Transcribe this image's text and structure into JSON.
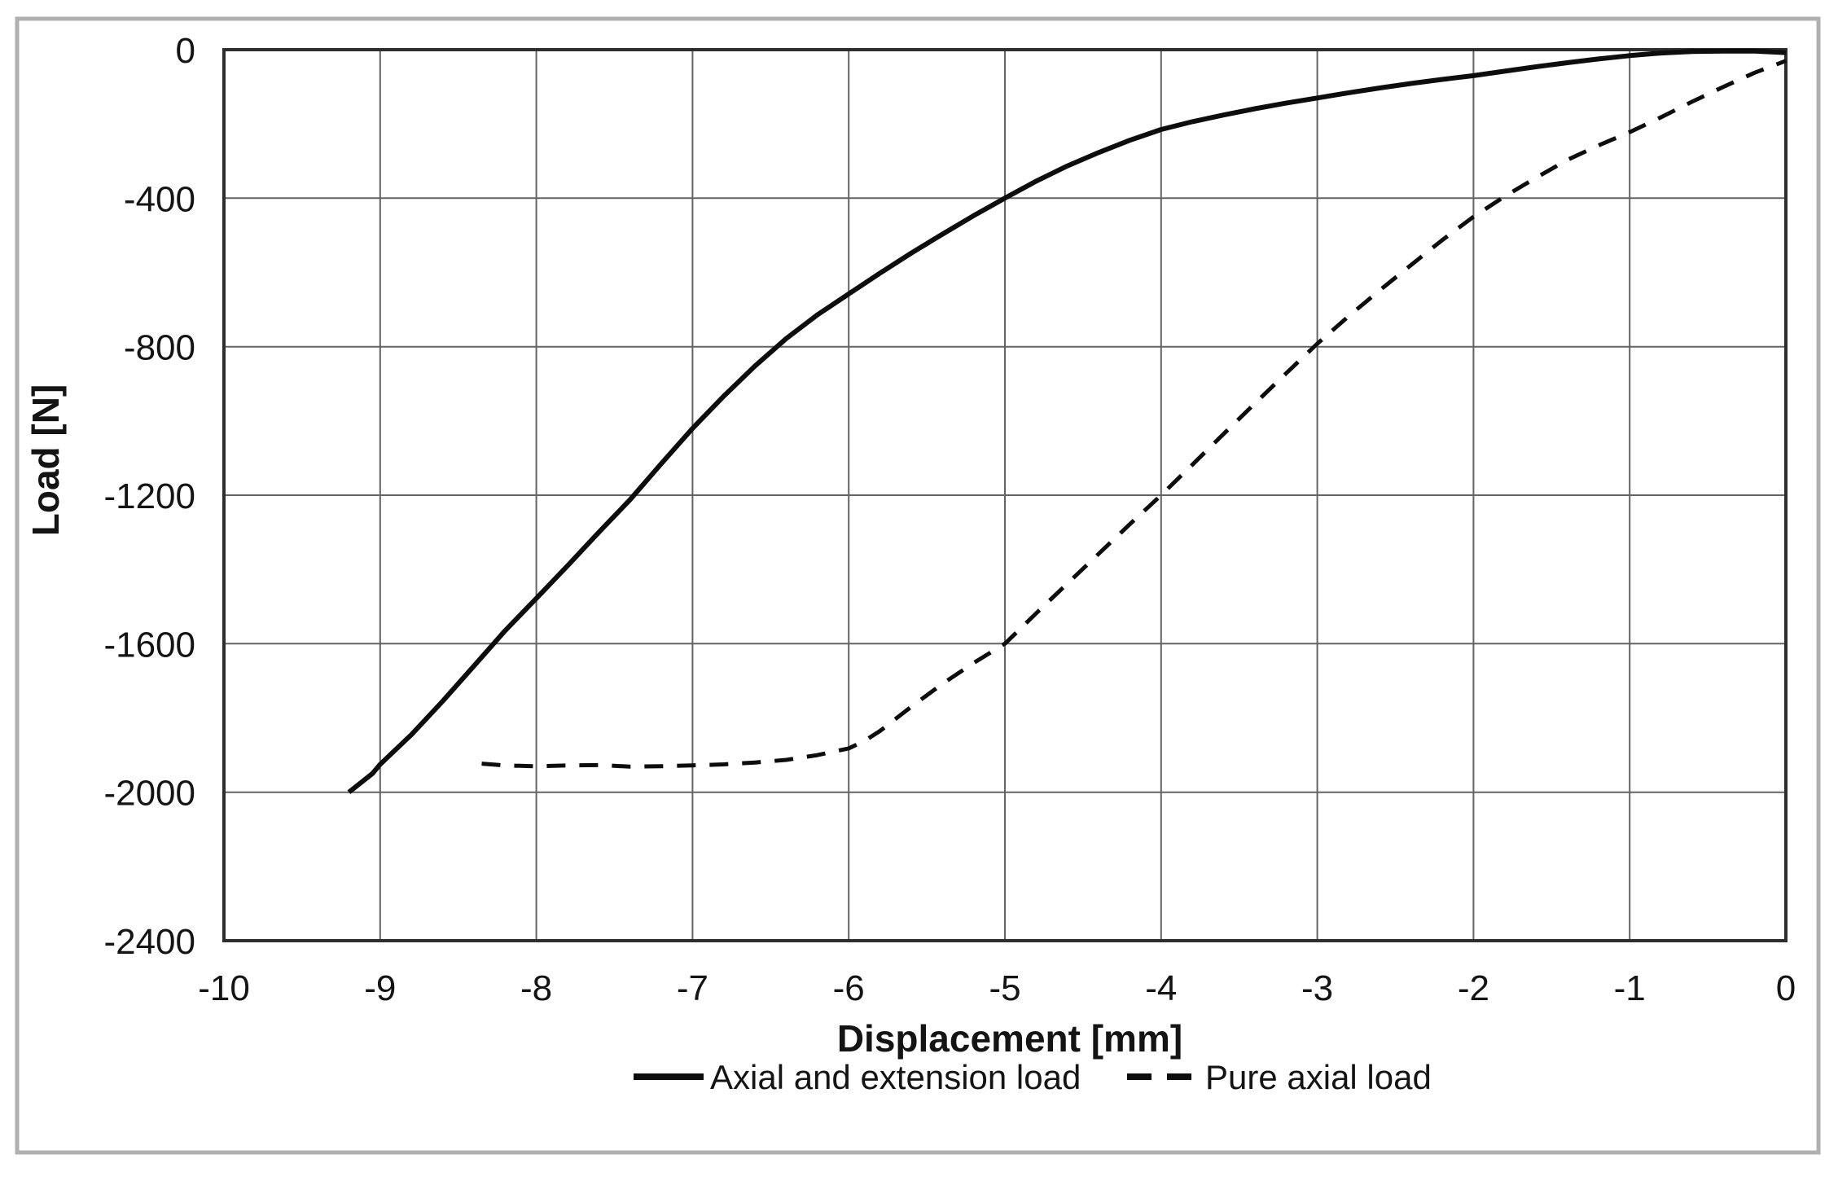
{
  "figure": {
    "background": "#ffffff",
    "frame_color": "#b0b0b0",
    "plot_border_color": "#2e2e2e",
    "gridline_color": "#636363",
    "series_color": "#0d0d0d",
    "text_color": "#141414"
  },
  "chart_data": {
    "type": "line",
    "title": "",
    "xlabel": "Displacement [mm]",
    "ylabel": "Load [N]",
    "xlim": [
      -10,
      0
    ],
    "ylim": [
      -2400,
      0
    ],
    "x_ticks": [
      -10,
      -9,
      -8,
      -7,
      -6,
      -5,
      -4,
      -3,
      -2,
      -1,
      0
    ],
    "y_ticks": [
      0,
      -400,
      -800,
      -1200,
      -1600,
      -2000,
      -2400
    ],
    "grid": true,
    "legend_position": "bottom",
    "series": [
      {
        "name": "Axial and extension load",
        "style": "solid",
        "points": [
          [
            -9.2,
            -2000
          ],
          [
            -9.05,
            -1950
          ],
          [
            -9,
            -1925
          ],
          [
            -8.8,
            -1845
          ],
          [
            -8.6,
            -1755
          ],
          [
            -8.4,
            -1660
          ],
          [
            -8.2,
            -1565
          ],
          [
            -8,
            -1478
          ],
          [
            -7.8,
            -1390
          ],
          [
            -7.6,
            -1300
          ],
          [
            -7.4,
            -1212
          ],
          [
            -7.2,
            -1115
          ],
          [
            -7,
            -1020
          ],
          [
            -6.8,
            -933
          ],
          [
            -6.6,
            -852
          ],
          [
            -6.4,
            -778
          ],
          [
            -6.2,
            -714
          ],
          [
            -6,
            -658
          ],
          [
            -5.8,
            -602
          ],
          [
            -5.6,
            -548
          ],
          [
            -5.4,
            -497
          ],
          [
            -5.2,
            -447
          ],
          [
            -5,
            -400
          ],
          [
            -4.8,
            -354
          ],
          [
            -4.6,
            -313
          ],
          [
            -4.4,
            -277
          ],
          [
            -4.2,
            -244
          ],
          [
            -4,
            -215
          ],
          [
            -3.8,
            -194
          ],
          [
            -3.6,
            -176
          ],
          [
            -3.4,
            -159
          ],
          [
            -3.2,
            -144
          ],
          [
            -3,
            -130
          ],
          [
            -2.8,
            -116
          ],
          [
            -2.6,
            -103
          ],
          [
            -2.4,
            -91
          ],
          [
            -2.2,
            -80
          ],
          [
            -2,
            -70
          ],
          [
            -1.8,
            -58
          ],
          [
            -1.6,
            -46
          ],
          [
            -1.4,
            -35
          ],
          [
            -1.2,
            -25
          ],
          [
            -1,
            -16
          ],
          [
            -0.8,
            -9
          ],
          [
            -0.6,
            -5
          ],
          [
            -0.4,
            -4
          ],
          [
            -0.2,
            -4
          ],
          [
            0,
            -8
          ]
        ]
      },
      {
        "name": "Pure axial load",
        "style": "dashed",
        "points": [
          [
            -8.35,
            -1923
          ],
          [
            -8.2,
            -1928
          ],
          [
            -8,
            -1930
          ],
          [
            -7.8,
            -1928
          ],
          [
            -7.6,
            -1927
          ],
          [
            -7.4,
            -1931
          ],
          [
            -7.2,
            -1930
          ],
          [
            -7,
            -1928
          ],
          [
            -6.8,
            -1925
          ],
          [
            -6.6,
            -1920
          ],
          [
            -6.4,
            -1913
          ],
          [
            -6.2,
            -1900
          ],
          [
            -6,
            -1882
          ],
          [
            -5.9,
            -1862
          ],
          [
            -5.8,
            -1835
          ],
          [
            -5.6,
            -1770
          ],
          [
            -5.4,
            -1708
          ],
          [
            -5.2,
            -1652
          ],
          [
            -5,
            -1600
          ],
          [
            -4.8,
            -1518
          ],
          [
            -4.6,
            -1438
          ],
          [
            -4.4,
            -1358
          ],
          [
            -4.2,
            -1278
          ],
          [
            -4,
            -1200
          ],
          [
            -3.8,
            -1118
          ],
          [
            -3.6,
            -1035
          ],
          [
            -3.4,
            -953
          ],
          [
            -3.2,
            -872
          ],
          [
            -3,
            -792
          ],
          [
            -2.8,
            -718
          ],
          [
            -2.6,
            -648
          ],
          [
            -2.4,
            -580
          ],
          [
            -2.2,
            -513
          ],
          [
            -2,
            -450
          ],
          [
            -1.8,
            -395
          ],
          [
            -1.6,
            -345
          ],
          [
            -1.4,
            -297
          ],
          [
            -1.2,
            -258
          ],
          [
            -1,
            -222
          ],
          [
            -0.8,
            -182
          ],
          [
            -0.6,
            -140
          ],
          [
            -0.4,
            -100
          ],
          [
            -0.2,
            -62
          ],
          [
            0,
            -30
          ]
        ]
      }
    ]
  }
}
